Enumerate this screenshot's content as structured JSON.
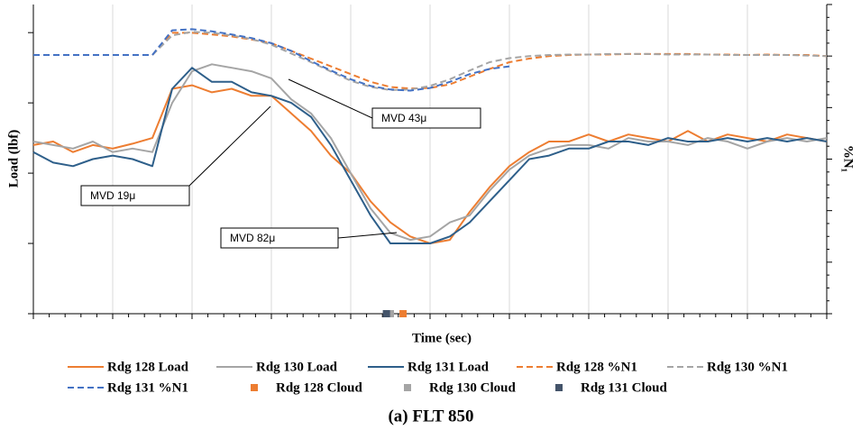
{
  "chart_data": {
    "type": "line",
    "title": "(a) FLT 850",
    "xlabel": "Time (sec)",
    "ylabel": "Load (lbf)",
    "y2label": "%N₁",
    "xlim": [
      0,
      100
    ],
    "xticks": [
      0,
      10,
      20,
      30,
      40,
      50,
      60,
      70,
      80,
      90,
      100
    ],
    "ylim": [
      0,
      4.4
    ],
    "yticks": [
      0,
      1,
      2,
      3,
      4
    ],
    "y2lim": [
      0,
      6
    ],
    "y2ticks": [
      0,
      1,
      2,
      3,
      4,
      5,
      6
    ],
    "grid": true,
    "x": [
      0,
      2.5,
      5,
      7.5,
      10,
      12.5,
      15,
      17.5,
      20,
      22.5,
      25,
      27.5,
      30,
      32.5,
      35,
      37.5,
      40,
      42.5,
      45,
      47.5,
      50,
      52.5,
      55,
      57.5,
      60,
      62.5,
      65,
      67.5,
      70,
      72.5,
      75,
      77.5,
      80,
      82.5,
      85,
      87.5,
      90,
      92.5,
      95,
      97.5,
      100
    ],
    "series": [
      {
        "name": "Rdg 128 Load",
        "color": "#ed7d31",
        "style": "solid",
        "values": [
          2.4,
          2.45,
          2.3,
          2.4,
          2.35,
          2.42,
          2.5,
          3.2,
          3.25,
          3.15,
          3.2,
          3.1,
          3.1,
          2.85,
          2.6,
          2.25,
          2.0,
          1.6,
          1.3,
          1.1,
          1.0,
          1.05,
          1.45,
          1.8,
          2.1,
          2.3,
          2.45,
          2.45,
          2.55,
          2.45,
          2.55,
          2.5,
          2.45,
          2.6,
          2.45,
          2.55,
          2.5,
          2.45,
          2.55,
          2.5,
          2.45
        ]
      },
      {
        "name": "Rdg 130 Load",
        "color": "#a5a5a5",
        "style": "solid",
        "values": [
          2.45,
          2.4,
          2.35,
          2.45,
          2.3,
          2.35,
          2.3,
          3.0,
          3.45,
          3.55,
          3.5,
          3.45,
          3.35,
          3.05,
          2.85,
          2.5,
          2.0,
          1.5,
          1.15,
          1.05,
          1.1,
          1.3,
          1.4,
          1.75,
          2.05,
          2.25,
          2.35,
          2.4,
          2.4,
          2.35,
          2.5,
          2.45,
          2.45,
          2.4,
          2.5,
          2.45,
          2.35,
          2.45,
          2.5,
          2.45,
          2.5
        ]
      },
      {
        "name": "Rdg 131 Load",
        "color": "#2e5f8a",
        "style": "solid",
        "values": [
          2.3,
          2.15,
          2.1,
          2.2,
          2.25,
          2.2,
          2.1,
          3.2,
          3.5,
          3.3,
          3.3,
          3.15,
          3.1,
          3.0,
          2.8,
          2.4,
          1.9,
          1.4,
          1.0,
          1.0,
          1.0,
          1.1,
          1.3,
          1.6,
          1.9,
          2.2,
          2.25,
          2.35,
          2.35,
          2.45,
          2.45,
          2.4,
          2.5,
          2.45,
          2.45,
          2.5,
          2.45,
          2.5,
          2.45,
          2.5,
          2.45
        ]
      },
      {
        "name": "Rdg 128 %N1",
        "color": "#ed7d31",
        "style": "dashed",
        "axis": "y2",
        "values": [
          5.02,
          5.02,
          5.02,
          5.02,
          5.02,
          5.02,
          5.02,
          5.45,
          5.45,
          5.42,
          5.38,
          5.32,
          5.25,
          5.1,
          4.95,
          4.8,
          4.65,
          4.5,
          4.4,
          4.37,
          4.38,
          4.45,
          4.6,
          4.75,
          4.88,
          4.95,
          5.0,
          5.02,
          5.03,
          5.03,
          5.04,
          5.04,
          5.04,
          5.04,
          5.03,
          5.03,
          5.02,
          5.03,
          5.02,
          5.02,
          5.0
        ]
      },
      {
        "name": "Rdg 130 %N1",
        "color": "#a5a5a5",
        "style": "dashed",
        "axis": "y2",
        "values": [
          5.02,
          5.02,
          5.02,
          5.02,
          5.02,
          5.02,
          5.02,
          5.4,
          5.47,
          5.45,
          5.4,
          5.33,
          5.22,
          5.05,
          4.88,
          4.7,
          4.52,
          4.4,
          4.34,
          4.35,
          4.42,
          4.55,
          4.72,
          4.88,
          4.96,
          5.0,
          5.02,
          5.03,
          5.03,
          5.04,
          5.04,
          5.04,
          5.03,
          5.03,
          5.03,
          5.02,
          5.02,
          5.02,
          5.02,
          5.01,
          5.0
        ]
      },
      {
        "name": "Rdg 131 %N1",
        "color": "#4472c4",
        "style": "dashed",
        "axis": "y2",
        "values": [
          5.02,
          5.02,
          5.02,
          5.02,
          5.02,
          5.02,
          5.02,
          5.5,
          5.52,
          5.48,
          5.42,
          5.35,
          5.25,
          5.1,
          4.9,
          4.72,
          4.55,
          4.42,
          4.35,
          4.33,
          4.38,
          4.5,
          4.65,
          4.75,
          4.8,
          null,
          null,
          null,
          null,
          null,
          null,
          null,
          null,
          null,
          null,
          null,
          null,
          null,
          null,
          null,
          null
        ]
      },
      {
        "name": "Rdg 128 Cloud",
        "color": "#ed7d31",
        "style": "square",
        "x": 46.6
      },
      {
        "name": "Rdg 130 Cloud",
        "color": "#a5a5a5",
        "style": "square",
        "x": 45.0
      },
      {
        "name": "Rdg 131 Cloud",
        "color": "#44546a",
        "style": "square",
        "x": 44.5
      }
    ],
    "annotations": [
      {
        "text": "MVD 43μ"
      },
      {
        "text": "MVD 19μ"
      },
      {
        "text": "MVD 82μ"
      }
    ]
  }
}
